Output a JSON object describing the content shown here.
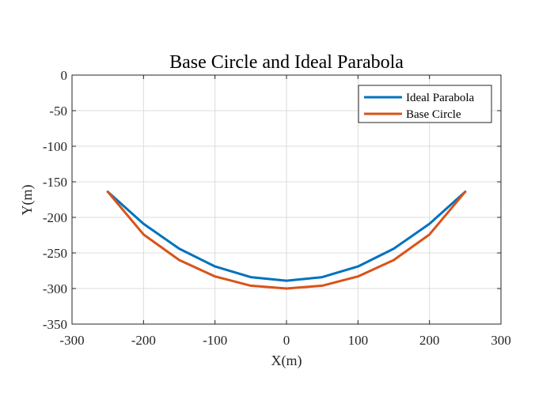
{
  "chart_data": {
    "type": "line",
    "title": "Base Circle and Ideal Parabola",
    "xlabel": "X(m)",
    "ylabel": "Y(m)",
    "xlim": [
      -300,
      300
    ],
    "ylim": [
      -350,
      0
    ],
    "xticks": [
      -300,
      -200,
      -100,
      0,
      100,
      200,
      300
    ],
    "yticks": [
      0,
      -50,
      -100,
      -150,
      -200,
      -250,
      -300,
      -350
    ],
    "grid": true,
    "legend_position": "top-right",
    "series": [
      {
        "name": "Ideal Parabola",
        "color": "#0072BD",
        "x": [
          -250,
          -200,
          -150,
          -100,
          -50,
          0,
          50,
          100,
          150,
          200,
          250
        ],
        "y": [
          -164,
          -209,
          -244,
          -269,
          -284,
          -289,
          -284,
          -269,
          -244,
          -209,
          -164
        ]
      },
      {
        "name": "Base Circle",
        "color": "#D95319",
        "x": [
          -250,
          -200,
          -150,
          -100,
          -50,
          0,
          50,
          100,
          150,
          200,
          250
        ],
        "y": [
          -164,
          -224,
          -260,
          -283,
          -296,
          -300,
          -296,
          -283,
          -260,
          -224,
          -164
        ]
      }
    ]
  }
}
